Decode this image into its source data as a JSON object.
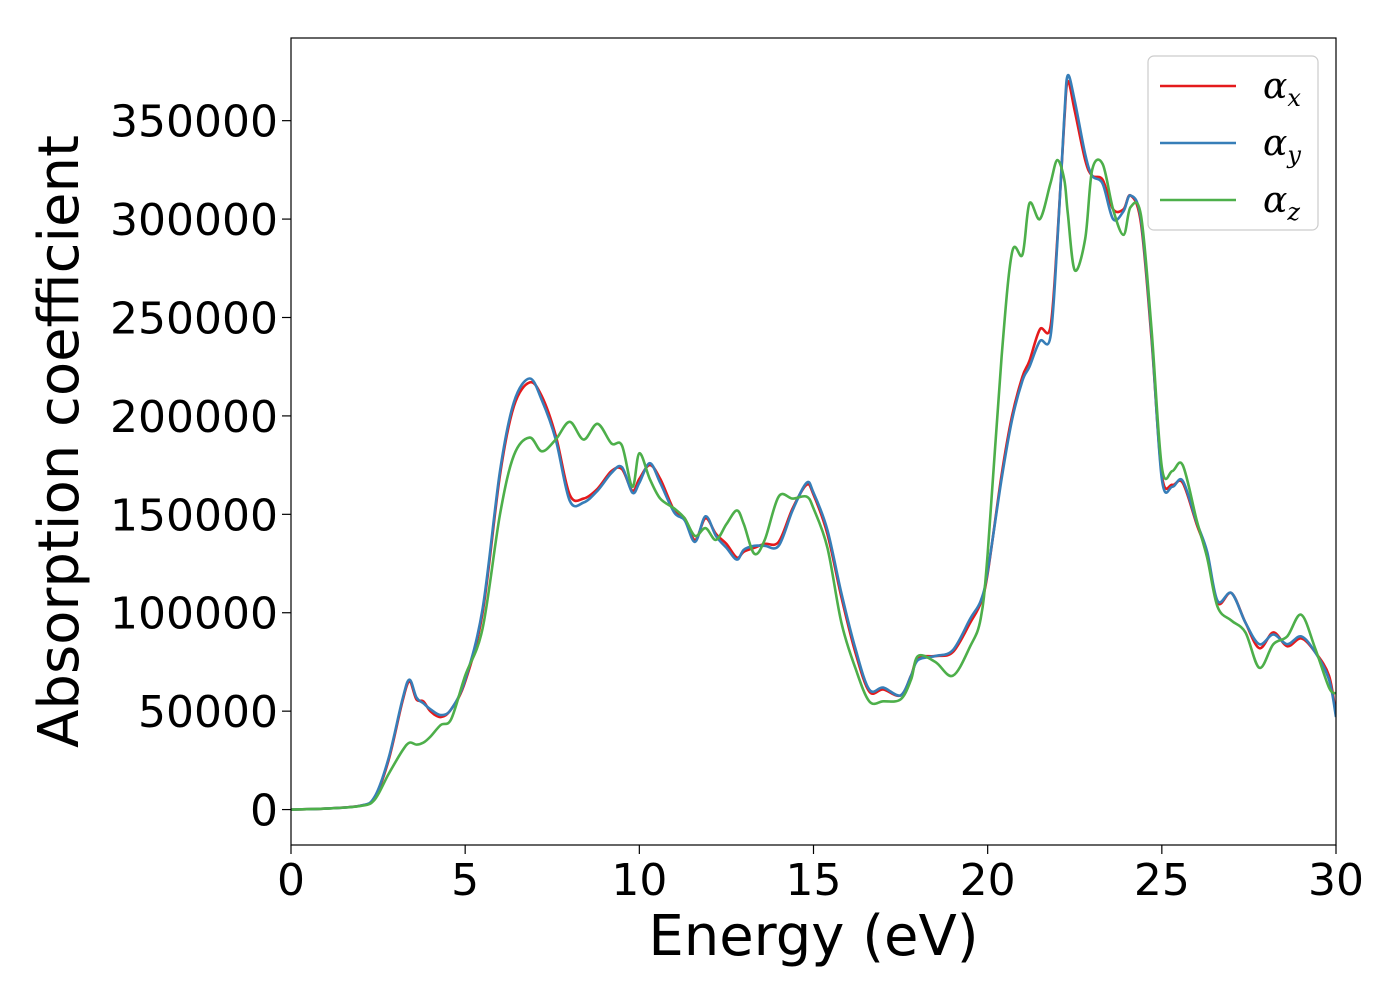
{
  "chart_data": {
    "type": "line",
    "title": "",
    "xlabel": "Energy (eV)",
    "ylabel": "Absorption coefficient",
    "xlim": [
      0,
      30
    ],
    "ylim": [
      -18000,
      392000
    ],
    "xticks": [
      0,
      5,
      10,
      15,
      20,
      25,
      30
    ],
    "yticks": [
      0,
      50000,
      100000,
      150000,
      200000,
      250000,
      300000,
      350000
    ],
    "grid": false,
    "legend_position": "top-right",
    "series": [
      {
        "name": "α_x",
        "legend_base": "α",
        "legend_sub": "x",
        "color": "#e41a1c",
        "x": [
          0,
          1,
          2,
          2.4,
          2.8,
          3.2,
          3.4,
          3.6,
          3.8,
          4,
          4.3,
          4.6,
          5,
          5.5,
          6,
          6.4,
          6.85,
          7.2,
          7.6,
          8,
          8.4,
          8.8,
          9.2,
          9.5,
          9.8,
          10,
          10.3,
          10.6,
          11,
          11.3,
          11.6,
          11.9,
          12.2,
          12.5,
          12.8,
          13,
          13.3,
          13.6,
          14,
          14.4,
          14.8,
          15,
          15.4,
          15.8,
          16.2,
          16.6,
          17,
          17.5,
          17.8,
          18,
          18.5,
          19,
          19.5,
          19.8,
          20,
          20.4,
          20.7,
          21,
          21.2,
          21.5,
          21.8,
          22,
          22.2,
          22.3,
          22.5,
          22.8,
          23,
          23.3,
          23.6,
          23.9,
          24.1,
          24.4,
          24.7,
          25,
          25.3,
          25.6,
          26,
          26.3,
          26.6,
          27,
          27.4,
          27.8,
          28.2,
          28.6,
          29,
          29.4,
          29.8,
          30
        ],
        "y": [
          0,
          500,
          2000,
          6000,
          25000,
          55000,
          65000,
          56000,
          55000,
          50000,
          47000,
          51000,
          65000,
          100000,
          170000,
          205000,
          217000,
          210000,
          190000,
          160000,
          158000,
          163000,
          172000,
          173000,
          162000,
          168000,
          175000,
          168000,
          152000,
          148000,
          137000,
          148000,
          140000,
          135000,
          128000,
          131000,
          133000,
          135000,
          136000,
          153000,
          165000,
          160000,
          140000,
          108000,
          80000,
          60000,
          61000,
          58000,
          68000,
          77000,
          78000,
          80000,
          95000,
          105000,
          120000,
          170000,
          200000,
          220000,
          228000,
          244000,
          245000,
          290000,
          350000,
          370000,
          355000,
          330000,
          322000,
          320000,
          305000,
          305000,
          312000,
          298000,
          240000,
          170000,
          165000,
          166000,
          145000,
          130000,
          105000,
          110000,
          95000,
          82000,
          90000,
          83000,
          87000,
          80000,
          68000,
          48000
        ]
      },
      {
        "name": "α_y",
        "legend_base": "α",
        "legend_sub": "y",
        "color": "#377eb8",
        "x": [
          0,
          1,
          2,
          2.4,
          2.8,
          3.2,
          3.4,
          3.6,
          3.8,
          4,
          4.3,
          4.6,
          5,
          5.5,
          6,
          6.4,
          6.85,
          7.2,
          7.6,
          8,
          8.4,
          8.8,
          9.2,
          9.5,
          9.8,
          10,
          10.3,
          10.6,
          11,
          11.3,
          11.6,
          11.9,
          12.2,
          12.5,
          12.8,
          13,
          13.3,
          13.6,
          14,
          14.4,
          14.8,
          15,
          15.4,
          15.8,
          16.2,
          16.6,
          17,
          17.5,
          17.8,
          18,
          18.5,
          19,
          19.5,
          19.8,
          20,
          20.4,
          20.7,
          21,
          21.2,
          21.5,
          21.8,
          22,
          22.2,
          22.3,
          22.5,
          22.8,
          23,
          23.3,
          23.6,
          23.9,
          24.1,
          24.4,
          24.7,
          25,
          25.3,
          25.6,
          26,
          26.3,
          26.6,
          27,
          27.4,
          27.8,
          28.2,
          28.6,
          29,
          29.4,
          29.8,
          30
        ],
        "y": [
          0,
          500,
          2000,
          6500,
          26000,
          56000,
          66000,
          57000,
          54000,
          51000,
          48000,
          51000,
          66000,
          102000,
          172000,
          207000,
          219000,
          208000,
          188000,
          157000,
          156000,
          162000,
          171000,
          174000,
          161000,
          166000,
          176000,
          166000,
          151000,
          147000,
          136000,
          149000,
          139000,
          133000,
          127000,
          132000,
          134000,
          134000,
          134000,
          152000,
          166000,
          161000,
          142000,
          110000,
          82000,
          61000,
          62000,
          58000,
          68000,
          76000,
          78000,
          81000,
          97000,
          106000,
          121000,
          168000,
          198000,
          218000,
          225000,
          238000,
          240000,
          288000,
          352000,
          373000,
          360000,
          333000,
          322000,
          318000,
          300000,
          304000,
          312000,
          300000,
          242000,
          168000,
          164000,
          167000,
          146000,
          131000,
          106000,
          110000,
          95000,
          84000,
          89000,
          84000,
          88000,
          80000,
          66000,
          47000
        ]
      },
      {
        "name": "α_z",
        "legend_base": "α",
        "legend_sub": "z",
        "color": "#4daf4a",
        "x": [
          0,
          1,
          2,
          2.4,
          2.8,
          3.2,
          3.4,
          3.6,
          3.8,
          4,
          4.3,
          4.6,
          5,
          5.5,
          6,
          6.4,
          6.85,
          7.2,
          7.6,
          8,
          8.4,
          8.8,
          9.2,
          9.5,
          9.8,
          10,
          10.3,
          10.6,
          11,
          11.3,
          11.6,
          11.9,
          12.2,
          12.5,
          12.8,
          13,
          13.3,
          13.6,
          14,
          14.4,
          14.8,
          15,
          15.4,
          15.8,
          16.2,
          16.6,
          17,
          17.5,
          17.8,
          18,
          18.5,
          19,
          19.5,
          19.8,
          20,
          20.4,
          20.7,
          21,
          21.2,
          21.5,
          21.8,
          22,
          22.2,
          22.3,
          22.5,
          22.8,
          23,
          23.3,
          23.6,
          23.9,
          24.1,
          24.4,
          24.7,
          25,
          25.3,
          25.6,
          26,
          26.3,
          26.6,
          27,
          27.4,
          27.8,
          28.2,
          28.6,
          29,
          29.4,
          29.8,
          30
        ],
        "y": [
          0,
          500,
          1800,
          5000,
          18000,
          30000,
          34000,
          33000,
          34000,
          37000,
          43000,
          46000,
          68000,
          92000,
          150000,
          180000,
          189000,
          182000,
          188000,
          197000,
          188000,
          196000,
          186000,
          185000,
          164000,
          181000,
          168000,
          158000,
          153000,
          148000,
          139000,
          143000,
          137000,
          145000,
          152000,
          145000,
          130000,
          137000,
          159000,
          158000,
          159000,
          153000,
          133000,
          95000,
          72000,
          55000,
          55000,
          56000,
          66000,
          78000,
          75000,
          68000,
          83000,
          97000,
          130000,
          230000,
          283000,
          282000,
          308000,
          300000,
          318000,
          330000,
          320000,
          303000,
          274000,
          290000,
          325000,
          328000,
          305000,
          292000,
          306000,
          302000,
          245000,
          174000,
          172000,
          175000,
          147000,
          128000,
          103000,
          96000,
          90000,
          72000,
          84000,
          88000,
          99000,
          82000,
          62000,
          59000
        ]
      }
    ]
  }
}
